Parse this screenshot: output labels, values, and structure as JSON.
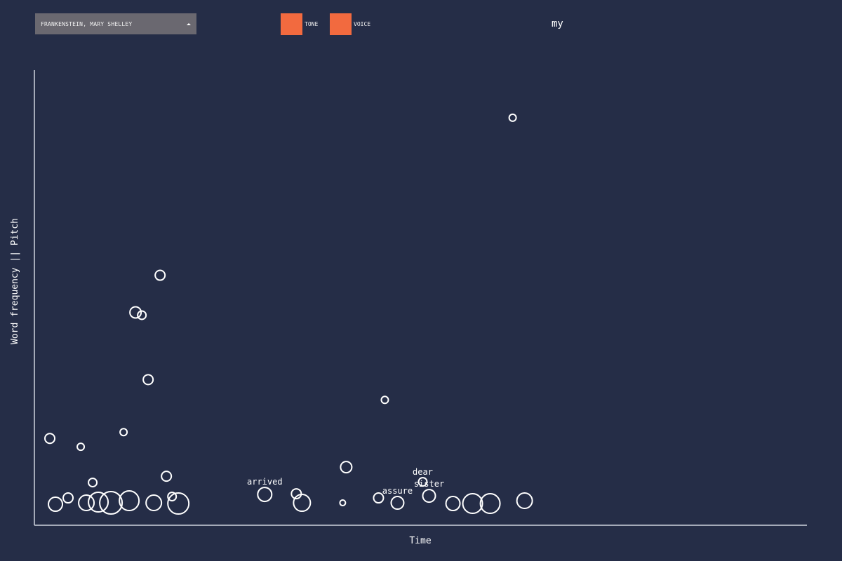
{
  "book_select": {
    "selected": "FRANKENSTEIN, MARY SHELLEY"
  },
  "toggles": [
    {
      "label": "TONE",
      "color": "#f26a3f"
    },
    {
      "label": "VOICE",
      "color": "#f26a3f"
    }
  ],
  "hover_word": "my",
  "colors": {
    "background": "#252d47",
    "axis": "#cfd3de",
    "marker": "#ffffff",
    "toggle": "#f26a3f"
  },
  "chart_data": {
    "type": "scatter",
    "xlabel": "Time",
    "ylabel": "Word frequency || Pitch",
    "xlim": [
      0,
      1100
    ],
    "ylim": [
      0,
      650
    ],
    "grid": false,
    "marker": "hollow circle, size = relative weight",
    "points": [
      {
        "x": 22,
        "y": 124,
        "r": 7
      },
      {
        "x": 30,
        "y": 30,
        "r": 10
      },
      {
        "x": 48,
        "y": 39,
        "r": 7
      },
      {
        "x": 66,
        "y": 112,
        "r": 5
      },
      {
        "x": 74,
        "y": 32,
        "r": 11
      },
      {
        "x": 83,
        "y": 61,
        "r": 6
      },
      {
        "x": 91,
        "y": 33,
        "r": 14
      },
      {
        "x": 109,
        "y": 32,
        "r": 16
      },
      {
        "x": 127,
        "y": 133,
        "r": 5
      },
      {
        "x": 135,
        "y": 35,
        "r": 14
      },
      {
        "x": 144,
        "y": 304,
        "r": 8
      },
      {
        "x": 153,
        "y": 300,
        "r": 6
      },
      {
        "x": 162,
        "y": 208,
        "r": 7
      },
      {
        "x": 170,
        "y": 32,
        "r": 11
      },
      {
        "x": 179,
        "y": 357,
        "r": 7
      },
      {
        "x": 188,
        "y": 70,
        "r": 7
      },
      {
        "x": 196,
        "y": 41,
        "r": 6
      },
      {
        "x": 205,
        "y": 31,
        "r": 15
      },
      {
        "x": 328,
        "y": 44,
        "r": 10,
        "label": "arrived"
      },
      {
        "x": 373,
        "y": 45,
        "r": 7
      },
      {
        "x": 381,
        "y": 32,
        "r": 12
      },
      {
        "x": 439,
        "y": 32,
        "r": 4
      },
      {
        "x": 444,
        "y": 83,
        "r": 8
      },
      {
        "x": 490,
        "y": 39,
        "r": 7
      },
      {
        "x": 499,
        "y": 179,
        "r": 5
      },
      {
        "x": 517,
        "y": 32,
        "r": 9,
        "label": "assure"
      },
      {
        "x": 553,
        "y": 62,
        "r": 6,
        "label": "dear"
      },
      {
        "x": 562,
        "y": 42,
        "r": 9,
        "label": "sister"
      },
      {
        "x": 596,
        "y": 31,
        "r": 10
      },
      {
        "x": 624,
        "y": 31,
        "r": 14
      },
      {
        "x": 649,
        "y": 31,
        "r": 14
      },
      {
        "x": 681,
        "y": 582,
        "r": 5
      },
      {
        "x": 698,
        "y": 35,
        "r": 11
      }
    ]
  }
}
